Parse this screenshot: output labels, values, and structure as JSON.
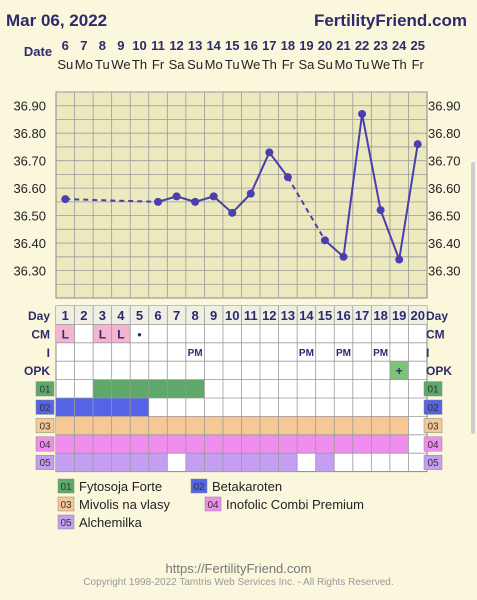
{
  "header": {
    "date": "Mar 06, 2022",
    "site": "FertilityFriend.com"
  },
  "labels": {
    "date": "Date",
    "day": "Day",
    "cm": "CM",
    "i": "I",
    "opk": "OPK"
  },
  "chart_data": {
    "type": "line",
    "x": [
      1,
      2,
      3,
      4,
      5,
      6,
      7,
      8,
      9,
      10,
      11,
      12,
      13,
      14,
      15,
      16,
      17,
      18,
      19,
      20
    ],
    "dates": [
      "6",
      "7",
      "8",
      "9",
      "10",
      "11",
      "12",
      "13",
      "14",
      "15",
      "16",
      "17",
      "18",
      "19",
      "20",
      "21",
      "22",
      "23",
      "24",
      "25"
    ],
    "weekdays": [
      "Su",
      "Mo",
      "Tu",
      "We",
      "Th",
      "Fr",
      "Sa",
      "Su",
      "Mo",
      "Tu",
      "We",
      "Th",
      "Fr",
      "Sa",
      "Su",
      "Mo",
      "Tu",
      "We",
      "Th",
      "Fr"
    ],
    "series": [
      {
        "values": [
          36.56,
          null,
          null,
          null,
          null,
          36.55,
          36.57,
          36.55,
          36.57,
          36.51,
          36.58,
          36.73,
          36.64,
          null,
          36.41,
          36.35,
          36.87,
          36.52,
          36.34,
          36.76
        ],
        "color": "#4a3fb0"
      }
    ],
    "dashed_segments": [
      [
        1,
        6
      ],
      [
        13,
        15
      ]
    ],
    "ylim": [
      36.2,
      36.95
    ],
    "yticks": [
      "36.90",
      "36.80",
      "36.70",
      "36.60",
      "36.50",
      "36.40",
      "36.30"
    ],
    "ytick_values": [
      36.9,
      36.8,
      36.7,
      36.6,
      36.5,
      36.4,
      36.3
    ],
    "grid": true
  },
  "cm": [
    "L",
    "",
    "L",
    "L",
    "•",
    "",
    "",
    "",
    "",
    "",
    "",
    "",
    "",
    "",
    "",
    "",
    "",
    "",
    "",
    ""
  ],
  "intercourse": [
    "",
    "",
    "",
    "",
    "",
    "",
    "",
    "PM",
    "",
    "",
    "",
    "",
    "",
    "PM",
    "",
    "PM",
    "",
    "PM",
    "",
    ""
  ],
  "opk": [
    "",
    "",
    "",
    "",
    "",
    "",
    "",
    "",
    "",
    "",
    "",
    "",
    "",
    "",
    "",
    "",
    "",
    "",
    "+",
    ""
  ],
  "supplements": [
    {
      "id": "01",
      "name": "Fytosoja Forte",
      "color": "#5ea86a",
      "days": [
        3,
        4,
        5,
        6,
        7,
        8
      ]
    },
    {
      "id": "02",
      "name": "Betakaroten",
      "color": "#5563e6",
      "days": [
        1,
        2,
        3,
        4,
        5
      ]
    },
    {
      "id": "03",
      "name": "Mivolis na vlasy",
      "color": "#f6c896",
      "days": [
        1,
        2,
        3,
        4,
        5,
        6,
        7,
        8,
        9,
        10,
        11,
        12,
        13,
        14,
        15,
        16,
        17,
        18,
        19
      ]
    },
    {
      "id": "04",
      "name": "Inofolic Combi Premium",
      "color": "#f08ef0",
      "days": [
        1,
        2,
        3,
        4,
        5,
        6,
        7,
        8,
        9,
        10,
        11,
        12,
        13,
        14,
        15,
        16,
        17,
        18,
        19
      ]
    },
    {
      "id": "05",
      "name": "Alchemilka",
      "color": "#c49ef0",
      "days": [
        1,
        2,
        3,
        4,
        5,
        6,
        8,
        9,
        10,
        11,
        12,
        13,
        15
      ]
    }
  ],
  "footer": {
    "url": "https://FertilityFriend.com",
    "copyright": "Copyright 1998-2022 Tamtris Web Services Inc. - All Rights Reserved."
  }
}
